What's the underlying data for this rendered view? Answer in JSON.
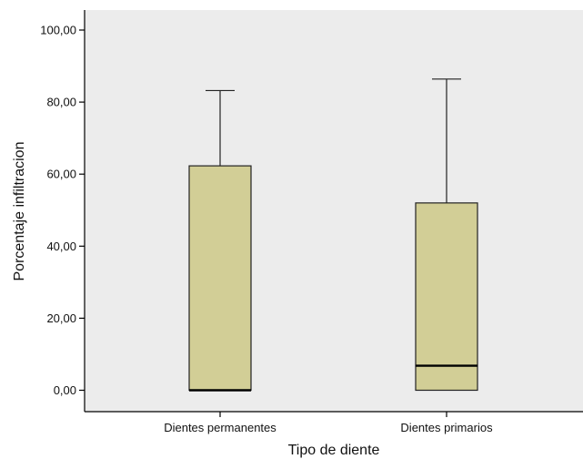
{
  "chart_data": {
    "type": "boxplot",
    "xlabel": "Tipo de diente",
    "ylabel": "Porcentaje infiltracion",
    "ylim": [
      -5,
      107
    ],
    "yticks": [
      0,
      20,
      40,
      60,
      80,
      100
    ],
    "ytick_labels": [
      "0,00",
      "20,00",
      "40,00",
      "60,00",
      "80,00",
      "100,00"
    ],
    "categories": [
      "Dientes permanentes",
      "Dientes primarios"
    ],
    "boxes": [
      {
        "category": "Dientes permanentes",
        "min": 0,
        "q1": 0,
        "median": 0,
        "q3": 62.3,
        "max": 83.2
      },
      {
        "category": "Dientes primarios",
        "min": 0,
        "q1": 0,
        "median": 6.8,
        "q3": 52.0,
        "max": 86.4
      }
    ],
    "grid": false,
    "colors": {
      "plot_bg": "#ececec",
      "box_fill": "#d2ce96",
      "box_stroke": "#222222",
      "median": "#000000",
      "axis": "#000000"
    }
  }
}
